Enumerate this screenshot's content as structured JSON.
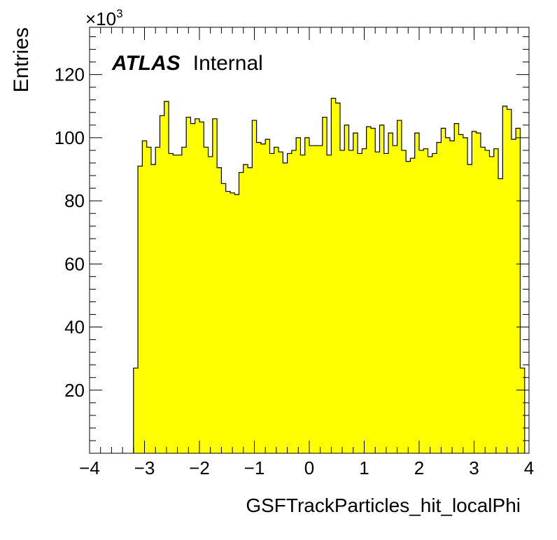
{
  "chart_data": {
    "type": "bar",
    "histogram": true,
    "xlabel": "GSFTrackParticles_hit_localPhi",
    "ylabel": "Entries",
    "y_multiplier": "×10",
    "y_multiplier_exp": "3",
    "annotation": {
      "bold": "ATLAS",
      "normal": "Internal"
    },
    "xlim": [
      -4,
      4
    ],
    "ylim": [
      0,
      135
    ],
    "x_ticks": [
      -4,
      -3,
      -2,
      -1,
      0,
      1,
      2,
      3,
      4
    ],
    "x_tick_labels": [
      "−4",
      "−3",
      "−2",
      "−1",
      "0",
      "1",
      "2",
      "3",
      "4"
    ],
    "y_ticks": [
      20,
      40,
      60,
      80,
      100,
      120
    ],
    "y_tick_labels": [
      "20",
      "40",
      "60",
      "80",
      "100",
      "120"
    ],
    "bin_start": -3.2,
    "bin_width": 0.08,
    "values": [
      27,
      91,
      99,
      97,
      91.5,
      97,
      107,
      111.5,
      95,
      94.5,
      94.5,
      97,
      106.5,
      104.5,
      106,
      105,
      97,
      94,
      106,
      90.5,
      85.5,
      83,
      82.5,
      82,
      89,
      91.5,
      90.5,
      105.5,
      98.5,
      98,
      99.5,
      95,
      97,
      95.5,
      92,
      95,
      96,
      100,
      94.5,
      100,
      97.5,
      97.5,
      97.5,
      106.5,
      94.5,
      112.5,
      111,
      96,
      104,
      96,
      101.5,
      95,
      96.5,
      103.5,
      103,
      95.5,
      104,
      95,
      101.5,
      97.5,
      105.5,
      96,
      92.5,
      93.5,
      101.5,
      96,
      96.5,
      94,
      95,
      98.5,
      103,
      100,
      99,
      104.5,
      101,
      100,
      91.5,
      102,
      101.5,
      97,
      96,
      94,
      96.5,
      87,
      110,
      109,
      99.5,
      103,
      27
    ],
    "colors": {
      "fill": "#ffff00",
      "line": "#000000"
    },
    "grid": false,
    "legend": "none"
  }
}
